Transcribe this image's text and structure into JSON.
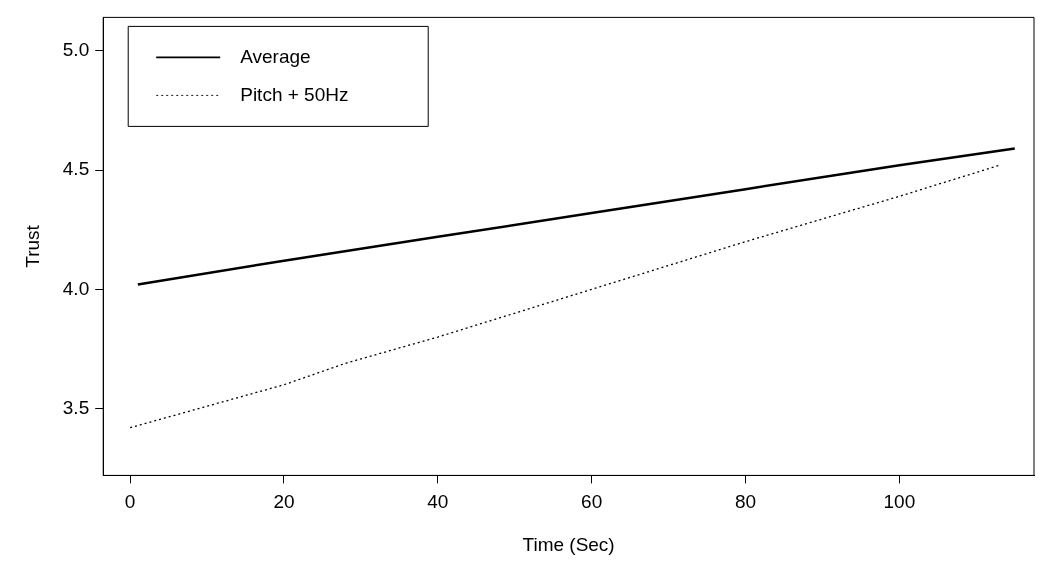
{
  "chart_data": {
    "type": "line",
    "xlabel": "Time (Sec)",
    "ylabel": "Trust",
    "xlim": [
      -3.5,
      117.5
    ],
    "ylim": [
      3.22,
      5.14
    ],
    "xticks": [
      0,
      20,
      40,
      60,
      80,
      100
    ],
    "yticks": [
      3.5,
      {
        "value": 4,
        "label": "4.0"
      },
      4.5,
      {
        "value": 5,
        "label": "5.0"
      }
    ],
    "grid": false,
    "legend": "top left",
    "marker": "none",
    "series": [
      {
        "name": "Average",
        "color": "#000000",
        "line_style": "solid",
        "x": [
          1,
          20,
          40,
          60,
          80,
          100,
          115
        ],
        "values": [
          4.02,
          4.12,
          4.22,
          4.32,
          4.42,
          4.52,
          4.59
        ]
      },
      {
        "name": "Pitch + 50Hz",
        "color": "#000000",
        "line_style": "dotted",
        "x": [
          0,
          20,
          28,
          40,
          60,
          80,
          100,
          113
        ],
        "values": [
          3.42,
          3.6,
          3.69,
          3.8,
          4.0,
          4.2,
          4.39,
          4.52
        ]
      }
    ]
  }
}
